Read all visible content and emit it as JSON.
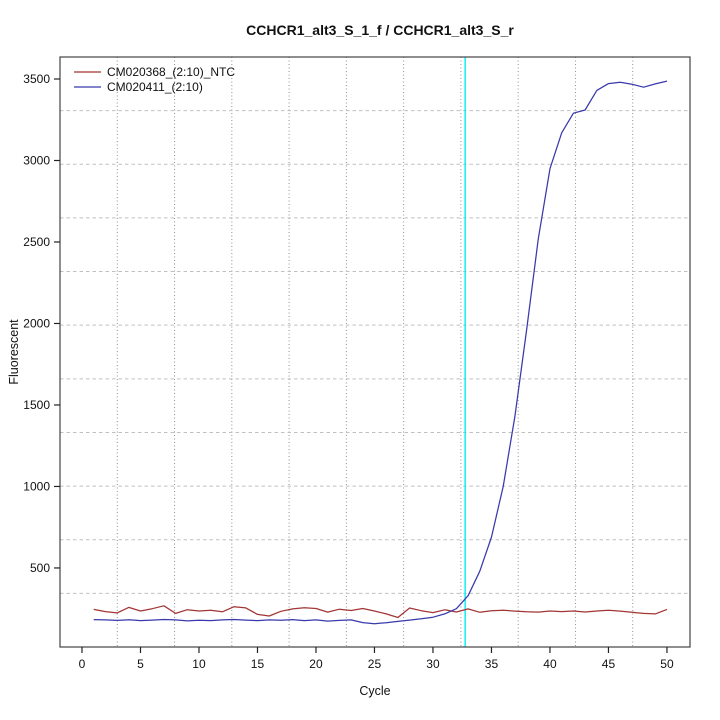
{
  "window": {
    "background": "#ffffff"
  },
  "chart_data": {
    "type": "line",
    "title": "CCHCR1_alt3_S_1_f / CCHCR1_alt3_S_r",
    "xlabel": "Cycle",
    "ylabel": "Fluorescent",
    "x_ticks": [
      0,
      5,
      10,
      15,
      20,
      25,
      30,
      35,
      40,
      45,
      50
    ],
    "y_ticks": [
      500,
      1000,
      1500,
      2000,
      2500,
      3000,
      3500
    ],
    "xlim": [
      -1.88,
      51.97
    ],
    "ylim": [
      15,
      3635
    ],
    "grid": {
      "divisions_x": 11,
      "divisions_y": 11,
      "h_color": "#c0c0c0",
      "v_color": "#909090",
      "style": "dotted"
    },
    "threshold_line": {
      "x": 32.75,
      "color": "#00eeee"
    },
    "legend_position": "top-left",
    "axis_color": "#222222",
    "x": [
      1,
      2,
      3,
      4,
      5,
      6,
      7,
      8,
      9,
      10,
      11,
      12,
      13,
      14,
      15,
      16,
      17,
      18,
      19,
      20,
      21,
      22,
      23,
      24,
      25,
      26,
      27,
      28,
      29,
      30,
      31,
      32,
      33,
      34,
      35,
      36,
      37,
      38,
      39,
      40,
      41,
      42,
      43,
      44,
      45,
      46,
      47,
      48,
      49,
      50
    ],
    "series": [
      {
        "name": "CM020368_(2:10)_NTC",
        "color": "#a23535",
        "values": [
          246,
          232,
          224,
          258,
          236,
          250,
          268,
          221,
          244,
          236,
          240,
          231,
          262,
          255,
          215,
          205,
          234,
          249,
          256,
          251,
          229,
          247,
          239,
          251,
          236,
          218,
          196,
          254,
          238,
          226,
          243,
          230,
          249,
          228,
          237,
          241,
          235,
          231,
          229,
          236,
          232,
          236,
          230,
          236,
          240,
          235,
          228,
          221,
          218,
          246
        ]
      },
      {
        "name": "CM020411_(2:10)",
        "color": "#3939ac",
        "values": [
          183,
          181,
          178,
          182,
          177,
          180,
          184,
          181,
          175,
          179,
          177,
          181,
          184,
          180,
          177,
          181,
          179,
          183,
          177,
          181,
          174,
          178,
          181,
          165,
          158,
          164,
          172,
          180,
          188,
          198,
          218,
          250,
          330,
          480,
          690,
          1000,
          1430,
          1960,
          2520,
          2950,
          3170,
          3290,
          3310,
          3430,
          3472,
          3480,
          3468,
          3450,
          3470,
          3487
        ]
      }
    ]
  }
}
